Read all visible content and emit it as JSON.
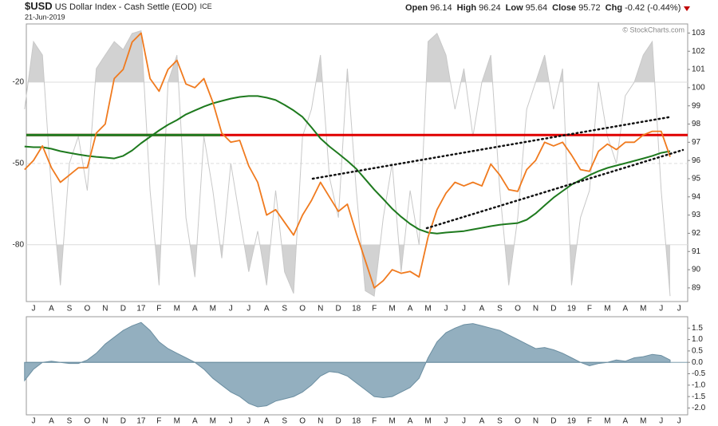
{
  "header": {
    "symbol": "$USD",
    "name": "US Dollar Index - Cash Settle (EOD)",
    "exchange": "ICE",
    "date": "21-Jun-2019",
    "quote": [
      {
        "label": "Open",
        "value": 96.14
      },
      {
        "label": "High",
        "value": 96.24
      },
      {
        "label": "Low",
        "value": 95.64
      },
      {
        "label": "Close",
        "value": 95.72
      },
      {
        "label": "Chg",
        "value": "-0.42 (-0.44%)"
      }
    ],
    "copyright": "© StockCharts.com"
  },
  "chart_data": [
    {
      "type": "line",
      "categories": [
        null,
        "J",
        null,
        "A",
        null,
        "S",
        null,
        "O",
        null,
        "N",
        null,
        "D",
        null,
        "17",
        null,
        "F",
        null,
        "M",
        null,
        "A",
        null,
        "M",
        null,
        "J",
        null,
        "J",
        null,
        "A",
        null,
        "S",
        null,
        "O",
        null,
        "N",
        null,
        "D",
        null,
        "18",
        null,
        "F",
        null,
        "M",
        null,
        "A",
        null,
        "M",
        null,
        "J",
        null,
        "J",
        null,
        "A",
        null,
        "S",
        null,
        "O",
        null,
        "N",
        null,
        "D",
        null,
        "19",
        null,
        "F",
        null,
        "M",
        null,
        "A",
        null,
        "M",
        null,
        "J",
        null,
        "J"
      ],
      "ylim": [
        88.25,
        103.5
      ],
      "yticks": [
        89,
        90,
        91,
        92,
        93,
        94,
        95,
        96,
        97,
        98,
        99,
        100,
        101,
        102,
        103
      ],
      "y2lim": [
        -101,
        1.5
      ],
      "y2ticks": [
        -20,
        -50,
        -80
      ],
      "grid": true,
      "reference_line": {
        "value": 97.4,
        "color": "#e00000"
      },
      "series": [
        {
          "axis": "y2",
          "color": "#c8c8c8",
          "values": [
            -30,
            -5,
            -10,
            -60,
            -95,
            -50,
            -40,
            -60,
            -15,
            -10,
            -5,
            -8,
            -2,
            -1,
            -60,
            -95,
            -20,
            -10,
            -70,
            -92,
            -40,
            -60,
            -85,
            -50,
            -70,
            -90,
            -75,
            -95,
            -60,
            -90,
            -98,
            -40,
            -30,
            -10,
            -55,
            -70,
            -15,
            -60,
            -97,
            -99,
            -70,
            -50,
            -90,
            -60,
            -80,
            -5,
            -2,
            -10,
            -30,
            -15,
            -40,
            -20,
            -10,
            -60,
            -95,
            -70,
            -30,
            -20,
            -10,
            -30,
            -15,
            -95,
            -70,
            -60,
            -20,
            -40,
            -50,
            -25,
            -20,
            -10,
            -5,
            -60,
            -99,
            null
          ]
        },
        {
          "color": "#1e7a1e",
          "values": [
            96.77,
            96.73,
            96.73,
            96.64,
            96.51,
            96.42,
            96.33,
            96.25,
            96.2,
            96.16,
            96.11,
            96.25,
            96.55,
            96.95,
            97.3,
            97.65,
            97.96,
            98.22,
            98.53,
            98.75,
            98.96,
            99.14,
            99.27,
            99.4,
            99.49,
            99.54,
            99.54,
            99.45,
            99.32,
            99.05,
            98.75,
            98.39,
            97.82,
            97.21,
            96.77,
            96.38,
            95.98,
            95.54,
            94.97,
            94.4,
            93.88,
            93.35,
            92.91,
            92.52,
            92.21,
            92.04,
            91.99,
            92.04,
            92.08,
            92.12,
            92.21,
            92.3,
            92.39,
            92.47,
            92.52,
            92.56,
            92.74,
            93.09,
            93.53,
            93.96,
            94.32,
            94.67,
            94.93,
            95.19,
            95.41,
            95.59,
            95.72,
            95.85,
            95.98,
            96.11,
            96.25,
            96.42,
            96.51,
            null
          ]
        },
        {
          "color": "#f07a1e",
          "values": [
            95.5,
            96.0,
            96.8,
            95.6,
            94.8,
            95.2,
            95.6,
            95.6,
            97.5,
            98.0,
            100.5,
            101.0,
            102.5,
            103.0,
            100.5,
            99.8,
            101.0,
            101.5,
            100.2,
            100.0,
            100.5,
            99.2,
            97.5,
            97.0,
            97.1,
            95.7,
            94.8,
            93.0,
            93.3,
            92.6,
            91.9,
            93.0,
            93.8,
            94.8,
            94.0,
            93.2,
            93.6,
            92.0,
            90.5,
            89.0,
            89.4,
            90.0,
            89.8,
            89.9,
            89.6,
            91.8,
            93.3,
            94.2,
            94.8,
            94.6,
            94.8,
            94.6,
            95.8,
            95.2,
            94.4,
            94.3,
            95.5,
            96.0,
            97.0,
            96.8,
            97.0,
            96.3,
            95.5,
            95.4,
            96.5,
            96.9,
            96.6,
            97.0,
            97.0,
            97.4,
            97.6,
            97.6,
            96.2,
            null
          ]
        }
      ]
    },
    {
      "type": "area",
      "ylim": [
        -2.3,
        2.0
      ],
      "yticks": [
        1.5,
        {
          "value": 1,
          "label": "1.0"
        },
        0.5,
        {
          "value": 0,
          "label": "0.0"
        },
        -0.5,
        {
          "value": -1,
          "label": "-1.0"
        },
        -1.5,
        {
          "value": -2,
          "label": "-2.0"
        }
      ],
      "color": "#93afbf",
      "values": [
        -0.8,
        -0.3,
        0.0,
        0.05,
        0.0,
        -0.05,
        -0.05,
        0.1,
        0.4,
        0.8,
        1.1,
        1.4,
        1.6,
        1.75,
        1.4,
        0.9,
        0.6,
        0.4,
        0.2,
        0.0,
        -0.3,
        -0.7,
        -1.0,
        -1.3,
        -1.5,
        -1.8,
        -1.95,
        -1.9,
        -1.7,
        -1.6,
        -1.5,
        -1.3,
        -1.0,
        -0.6,
        -0.4,
        -0.45,
        -0.6,
        -0.9,
        -1.2,
        -1.5,
        -1.55,
        -1.5,
        -1.3,
        -1.1,
        -0.7,
        0.2,
        0.9,
        1.3,
        1.5,
        1.65,
        1.7,
        1.6,
        1.5,
        1.4,
        1.2,
        1.0,
        0.8,
        0.6,
        0.65,
        0.55,
        0.4,
        0.2,
        0.0,
        -0.15,
        -0.05,
        0.0,
        0.1,
        0.05,
        0.2,
        0.25,
        0.35,
        0.3,
        0.1,
        null
      ]
    }
  ]
}
